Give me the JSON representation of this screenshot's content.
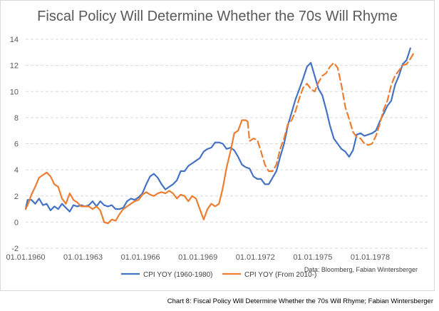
{
  "chart_data": {
    "type": "line",
    "title": "Fiscal Policy Will Determine Whether the 70s Will Rhyme",
    "ylim": [
      -2,
      14
    ],
    "yticks": [
      -2,
      0,
      2,
      4,
      6,
      8,
      10,
      12,
      14
    ],
    "xlim": [
      1960.0,
      1981.0
    ],
    "xticks": [
      {
        "value": 1960.0,
        "label": "01.01.1960"
      },
      {
        "value": 1963.0,
        "label": "01.01.1963"
      },
      {
        "value": 1966.0,
        "label": "01.01.1966"
      },
      {
        "value": 1969.0,
        "label": "01.01.1969"
      },
      {
        "value": 1972.0,
        "label": "01.01.1972"
      },
      {
        "value": 1975.0,
        "label": "01.01.1975"
      },
      {
        "value": 1978.0,
        "label": "01.01.1978"
      }
    ],
    "grid": "horizontal-dashed",
    "legend_position": "bottom",
    "series": [
      {
        "name": "CPI YOY (1960-1980)",
        "color": "#4472c4",
        "style": "solid",
        "points": [
          [
            1960.0,
            1.0
          ],
          [
            1960.1,
            1.7
          ],
          [
            1960.3,
            1.7
          ],
          [
            1960.5,
            1.4
          ],
          [
            1960.7,
            1.8
          ],
          [
            1960.9,
            1.3
          ],
          [
            1961.1,
            1.4
          ],
          [
            1961.3,
            0.9
          ],
          [
            1961.5,
            1.2
          ],
          [
            1961.7,
            1.0
          ],
          [
            1961.9,
            1.4
          ],
          [
            1962.1,
            1.1
          ],
          [
            1962.3,
            0.8
          ],
          [
            1962.5,
            1.3
          ],
          [
            1962.7,
            1.2
          ],
          [
            1962.9,
            1.3
          ],
          [
            1963.1,
            1.2
          ],
          [
            1963.3,
            1.3
          ],
          [
            1963.5,
            1.6
          ],
          [
            1963.7,
            1.2
          ],
          [
            1963.9,
            1.6
          ],
          [
            1964.1,
            1.3
          ],
          [
            1964.3,
            1.2
          ],
          [
            1964.5,
            1.3
          ],
          [
            1964.7,
            1.0
          ],
          [
            1964.9,
            1.0
          ],
          [
            1965.1,
            1.1
          ],
          [
            1965.3,
            1.6
          ],
          [
            1965.5,
            1.8
          ],
          [
            1965.7,
            1.7
          ],
          [
            1965.9,
            1.9
          ],
          [
            1966.1,
            2.2
          ],
          [
            1966.3,
            2.9
          ],
          [
            1966.5,
            3.5
          ],
          [
            1966.7,
            3.7
          ],
          [
            1966.9,
            3.4
          ],
          [
            1967.1,
            2.9
          ],
          [
            1967.3,
            2.5
          ],
          [
            1967.5,
            2.7
          ],
          [
            1967.7,
            2.9
          ],
          [
            1967.9,
            3.2
          ],
          [
            1968.1,
            3.9
          ],
          [
            1968.3,
            3.9
          ],
          [
            1968.5,
            4.3
          ],
          [
            1968.7,
            4.5
          ],
          [
            1968.9,
            4.7
          ],
          [
            1969.1,
            4.9
          ],
          [
            1969.3,
            5.4
          ],
          [
            1969.5,
            5.6
          ],
          [
            1969.7,
            5.7
          ],
          [
            1969.9,
            6.1
          ],
          [
            1970.1,
            6.1
          ],
          [
            1970.3,
            6.0
          ],
          [
            1970.5,
            5.6
          ],
          [
            1970.7,
            5.7
          ],
          [
            1970.9,
            5.5
          ],
          [
            1971.1,
            5.0
          ],
          [
            1971.3,
            4.4
          ],
          [
            1971.5,
            4.2
          ],
          [
            1971.7,
            4.1
          ],
          [
            1971.9,
            3.5
          ],
          [
            1972.1,
            3.3
          ],
          [
            1972.3,
            3.3
          ],
          [
            1972.5,
            2.9
          ],
          [
            1972.7,
            2.9
          ],
          [
            1972.9,
            3.4
          ],
          [
            1973.1,
            3.9
          ],
          [
            1973.3,
            5.0
          ],
          [
            1973.5,
            6.0
          ],
          [
            1973.7,
            7.4
          ],
          [
            1973.9,
            8.4
          ],
          [
            1974.1,
            9.4
          ],
          [
            1974.3,
            10.2
          ],
          [
            1974.5,
            11.0
          ],
          [
            1974.7,
            11.9
          ],
          [
            1974.9,
            12.2
          ],
          [
            1975.1,
            11.2
          ],
          [
            1975.3,
            10.2
          ],
          [
            1975.5,
            9.7
          ],
          [
            1975.7,
            8.6
          ],
          [
            1975.9,
            7.4
          ],
          [
            1976.1,
            6.4
          ],
          [
            1976.3,
            6.0
          ],
          [
            1976.5,
            5.6
          ],
          [
            1976.7,
            5.4
          ],
          [
            1976.9,
            5.0
          ],
          [
            1977.1,
            5.5
          ],
          [
            1977.3,
            6.7
          ],
          [
            1977.5,
            6.8
          ],
          [
            1977.7,
            6.6
          ],
          [
            1977.9,
            6.7
          ],
          [
            1978.1,
            6.8
          ],
          [
            1978.3,
            7.0
          ],
          [
            1978.5,
            7.7
          ],
          [
            1978.7,
            8.3
          ],
          [
            1978.9,
            8.9
          ],
          [
            1979.1,
            9.3
          ],
          [
            1979.3,
            10.5
          ],
          [
            1979.5,
            11.2
          ],
          [
            1979.7,
            12.1
          ],
          [
            1979.9,
            12.4
          ],
          [
            1980.1,
            13.3
          ]
        ]
      },
      {
        "name": "CPI YOY (From 2010-)",
        "color": "#ed7d31",
        "style": "solid-then-dashed",
        "dash_from_x": 1971.6,
        "points": [
          [
            1960.0,
            1.0
          ],
          [
            1960.1,
            1.3
          ],
          [
            1960.3,
            2.1
          ],
          [
            1960.5,
            2.7
          ],
          [
            1960.7,
            3.4
          ],
          [
            1960.9,
            3.6
          ],
          [
            1961.1,
            3.8
          ],
          [
            1961.3,
            3.5
          ],
          [
            1961.5,
            2.9
          ],
          [
            1961.7,
            2.7
          ],
          [
            1961.9,
            1.8
          ],
          [
            1962.1,
            1.4
          ],
          [
            1962.3,
            2.2
          ],
          [
            1962.5,
            1.7
          ],
          [
            1962.7,
            1.5
          ],
          [
            1962.9,
            1.2
          ],
          [
            1963.1,
            1.2
          ],
          [
            1963.3,
            1.2
          ],
          [
            1963.5,
            1.0
          ],
          [
            1963.7,
            1.2
          ],
          [
            1963.9,
            0.9
          ],
          [
            1964.1,
            0.0
          ],
          [
            1964.3,
            -0.1
          ],
          [
            1964.5,
            0.2
          ],
          [
            1964.7,
            0.1
          ],
          [
            1964.9,
            0.6
          ],
          [
            1965.1,
            1.0
          ],
          [
            1965.3,
            1.2
          ],
          [
            1965.5,
            1.4
          ],
          [
            1965.7,
            1.6
          ],
          [
            1965.9,
            1.7
          ],
          [
            1966.1,
            2.1
          ],
          [
            1966.3,
            2.3
          ],
          [
            1966.5,
            2.1
          ],
          [
            1966.7,
            2.0
          ],
          [
            1966.9,
            2.2
          ],
          [
            1967.1,
            2.3
          ],
          [
            1967.3,
            2.2
          ],
          [
            1967.5,
            2.4
          ],
          [
            1967.7,
            2.2
          ],
          [
            1967.9,
            1.8
          ],
          [
            1968.1,
            2.1
          ],
          [
            1968.3,
            2.0
          ],
          [
            1968.5,
            1.6
          ],
          [
            1968.7,
            2.0
          ],
          [
            1968.9,
            1.8
          ],
          [
            1969.1,
            1.0
          ],
          [
            1969.3,
            0.2
          ],
          [
            1969.5,
            1.0
          ],
          [
            1969.7,
            1.4
          ],
          [
            1969.9,
            1.2
          ],
          [
            1970.1,
            1.4
          ],
          [
            1970.3,
            2.6
          ],
          [
            1970.5,
            4.2
          ],
          [
            1970.7,
            5.4
          ],
          [
            1970.9,
            6.8
          ],
          [
            1971.1,
            7.0
          ],
          [
            1971.3,
            7.8
          ],
          [
            1971.5,
            7.8
          ],
          [
            1971.6,
            7.7
          ],
          [
            1971.7,
            6.2
          ],
          [
            1971.9,
            6.4
          ],
          [
            1972.1,
            6.3
          ],
          [
            1972.3,
            5.4
          ],
          [
            1972.5,
            4.4
          ],
          [
            1972.7,
            3.9
          ],
          [
            1972.9,
            3.9
          ],
          [
            1973.1,
            4.4
          ],
          [
            1973.3,
            5.6
          ],
          [
            1973.5,
            6.4
          ],
          [
            1973.7,
            7.5
          ],
          [
            1973.9,
            7.8
          ],
          [
            1974.1,
            8.5
          ],
          [
            1974.3,
            9.5
          ],
          [
            1974.5,
            10.3
          ],
          [
            1974.7,
            10.6
          ],
          [
            1974.9,
            10.2
          ],
          [
            1975.1,
            10.0
          ],
          [
            1975.3,
            10.7
          ],
          [
            1975.5,
            11.2
          ],
          [
            1975.7,
            11.4
          ],
          [
            1975.9,
            11.9
          ],
          [
            1976.1,
            12.2
          ],
          [
            1976.3,
            11.8
          ],
          [
            1976.5,
            10.5
          ],
          [
            1976.7,
            8.8
          ],
          [
            1976.9,
            7.9
          ],
          [
            1977.1,
            6.9
          ],
          [
            1977.3,
            6.5
          ],
          [
            1977.5,
            6.4
          ],
          [
            1977.7,
            6.0
          ],
          [
            1977.9,
            5.9
          ],
          [
            1978.1,
            6.0
          ],
          [
            1978.3,
            6.6
          ],
          [
            1978.5,
            7.5
          ],
          [
            1978.7,
            8.6
          ],
          [
            1978.9,
            9.3
          ],
          [
            1979.1,
            10.5
          ],
          [
            1979.3,
            11.2
          ],
          [
            1979.5,
            11.6
          ],
          [
            1979.7,
            12.0
          ],
          [
            1979.9,
            12.1
          ],
          [
            1980.1,
            12.5
          ],
          [
            1980.3,
            13.0
          ]
        ]
      }
    ]
  },
  "source_note": "Data: Bloomberg, Fabian Wintersberger",
  "caption": "Chart 8: Fiscal Policy Will Determine Whether the 70s Will Rhyme; Fabian Wintersberger"
}
